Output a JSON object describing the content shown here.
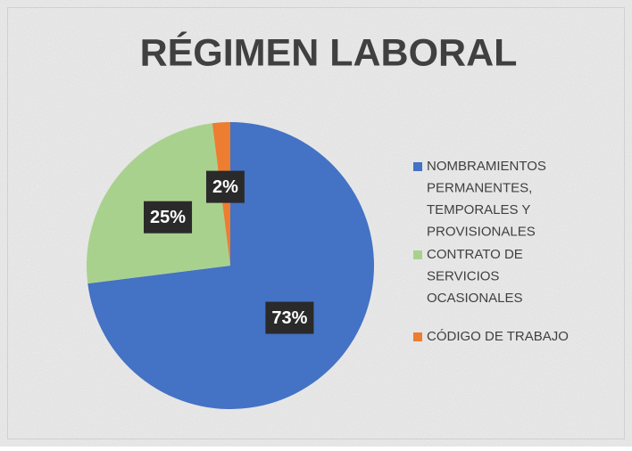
{
  "chart_data": {
    "type": "pie",
    "title": "RÉGIMEN LABORAL",
    "categories": [
      "NOMBRAMIENTOS PERMANENTES, TEMPORALES Y PROVISIONALES",
      "CONTRATO DE SERVICIOS OCASIONALES",
      "CÓDIGO DE TRABAJO"
    ],
    "values": [
      73,
      25,
      2
    ],
    "value_labels": [
      "73%",
      "25%",
      "2%"
    ],
    "colors": [
      "#4472c4",
      "#a9d18e",
      "#ed7d31"
    ],
    "legend": "right"
  }
}
